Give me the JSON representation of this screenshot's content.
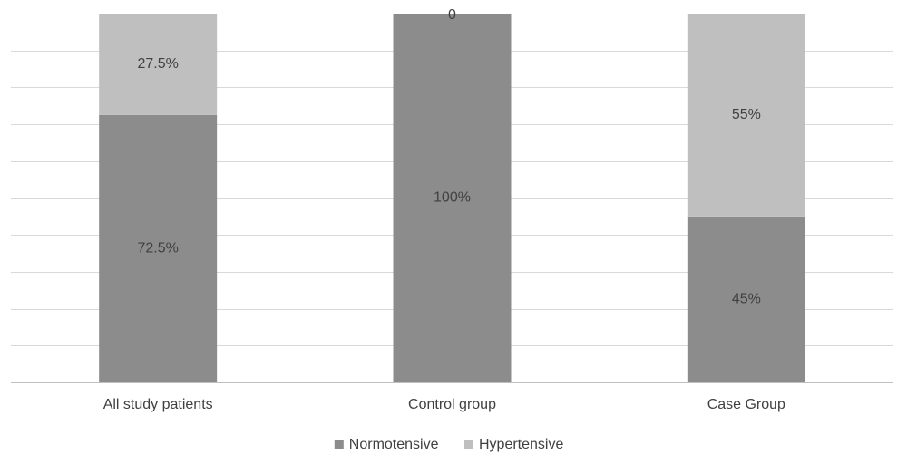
{
  "chart_data": {
    "type": "bar",
    "stacked": true,
    "percent_stacked": true,
    "categories": [
      "All study patients",
      "Control group",
      "Case Group"
    ],
    "series": [
      {
        "name": "Normotensive",
        "values": [
          72.5,
          100,
          45
        ],
        "labels": [
          "72.5%",
          "100%",
          "45%"
        ],
        "color": "#8c8c8c"
      },
      {
        "name": "Hypertensive",
        "values": [
          27.5,
          0,
          55
        ],
        "labels": [
          "27.5%",
          "0",
          "55%"
        ],
        "color": "#bfbfbf"
      }
    ],
    "ylim": [
      0,
      100
    ],
    "grid": true,
    "legend": "bottom"
  }
}
